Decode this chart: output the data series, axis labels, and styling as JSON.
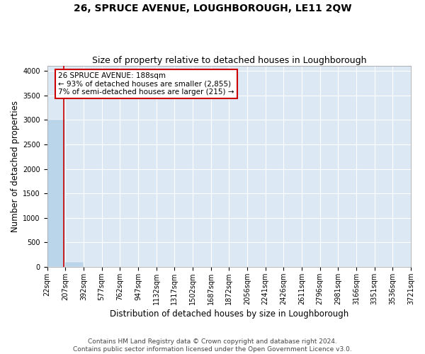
{
  "title": "26, SPRUCE AVENUE, LOUGHBOROUGH, LE11 2QW",
  "subtitle": "Size of property relative to detached houses in Loughborough",
  "xlabel": "Distribution of detached houses by size in Loughborough",
  "ylabel": "Number of detached properties",
  "footnote1": "Contains HM Land Registry data © Crown copyright and database right 2024.",
  "footnote2": "Contains public sector information licensed under the Open Government Licence v3.0.",
  "bin_edges": [
    22,
    207,
    392,
    577,
    762,
    947,
    1132,
    1317,
    1502,
    1687,
    1872,
    2056,
    2241,
    2426,
    2611,
    2796,
    2981,
    3166,
    3351,
    3536,
    3721
  ],
  "bar_heights": [
    3000,
    100,
    5,
    2,
    1,
    0,
    0,
    0,
    0,
    0,
    0,
    0,
    0,
    0,
    0,
    0,
    0,
    0,
    0,
    0
  ],
  "bar_color": "#bad4ea",
  "property_size": 188,
  "vline_color": "#cc0000",
  "annotation_line1": "26 SPRUCE AVENUE: 188sqm",
  "annotation_line2": "← 93% of detached houses are smaller (2,855)",
  "annotation_line3": "7% of semi-detached houses are larger (215) →",
  "annotation_box_color": "#cc0000",
  "annotation_bg": "#ffffff",
  "ylim": [
    0,
    4100
  ],
  "yticks": [
    0,
    500,
    1000,
    1500,
    2000,
    2500,
    3000,
    3500,
    4000
  ],
  "background_color": "#dce9f5",
  "grid_color": "#ffffff",
  "fig_bg": "#ffffff",
  "title_fontsize": 10,
  "subtitle_fontsize": 9,
  "axis_label_fontsize": 8.5,
  "tick_fontsize": 7,
  "annotation_fontsize": 7.5,
  "footnote_fontsize": 6.5
}
